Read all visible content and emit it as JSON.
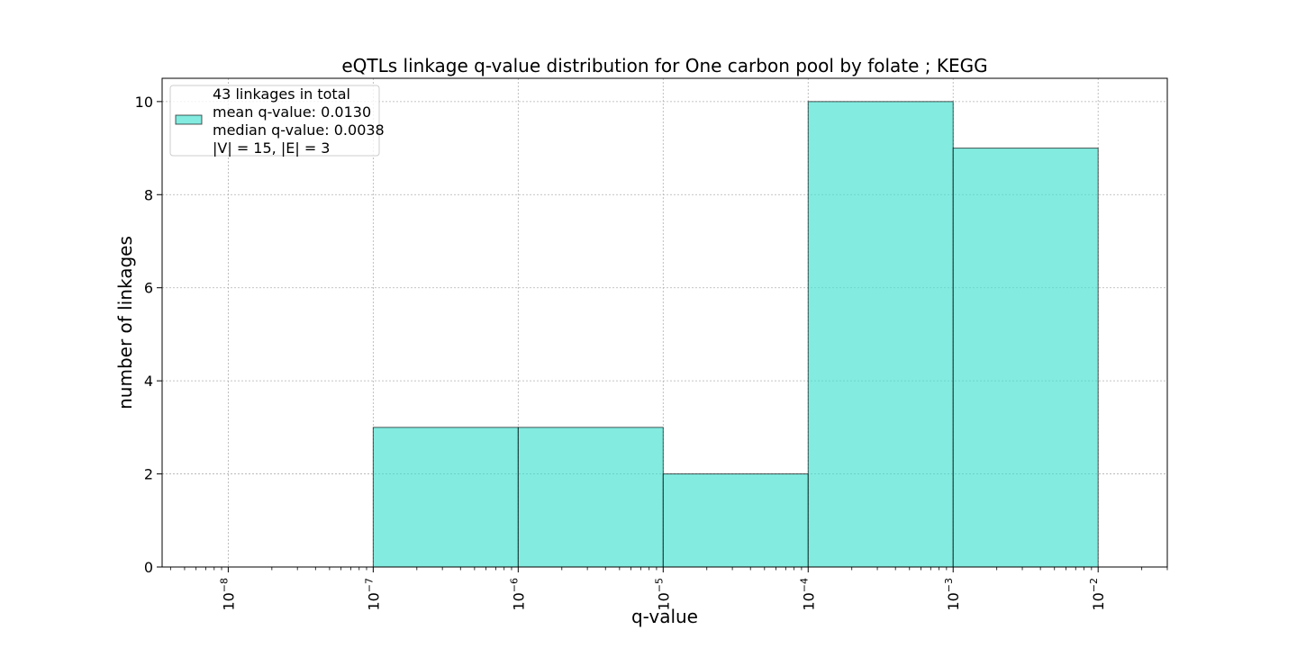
{
  "chart_data": {
    "type": "bar",
    "title": "eQTLs linkage q-value distribution for One carbon pool by folate ; KEGG",
    "xlabel": "q-value",
    "ylabel": "number of linkages",
    "x_scale": "log",
    "x_ticks": [
      {
        "base": "10",
        "exp": "−8",
        "value": 1e-08
      },
      {
        "base": "10",
        "exp": "−7",
        "value": 1e-07
      },
      {
        "base": "10",
        "exp": "−6",
        "value": 1e-06
      },
      {
        "base": "10",
        "exp": "−5",
        "value": 1e-05
      },
      {
        "base": "10",
        "exp": "−4",
        "value": 0.0001
      },
      {
        "base": "10",
        "exp": "−3",
        "value": 0.001
      },
      {
        "base": "10",
        "exp": "−2",
        "value": 0.01
      }
    ],
    "y_ticks": [
      "0",
      "2",
      "4",
      "6",
      "8",
      "10"
    ],
    "xlim": [
      3.5e-09,
      0.03
    ],
    "ylim": [
      0,
      10.5
    ],
    "bins": [
      {
        "x0": 1e-07,
        "x1": 1e-06,
        "count": 3
      },
      {
        "x0": 1e-06,
        "x1": 1e-05,
        "count": 3
      },
      {
        "x0": 1e-05,
        "x1": 0.0001,
        "count": 2
      },
      {
        "x0": 0.0001,
        "x1": 0.001,
        "count": 10
      },
      {
        "x0": 0.001,
        "x1": 0.01,
        "count": 9
      }
    ],
    "bar_color": "#40E0D0",
    "bar_edge_color": "#000000",
    "grid": true,
    "legend": {
      "placement": "top-left",
      "lines": [
        "43 linkages in total",
        "mean q-value: 0.0130",
        "median q-value: 0.0038",
        "|V| = 15, |E| = 3"
      ]
    }
  }
}
